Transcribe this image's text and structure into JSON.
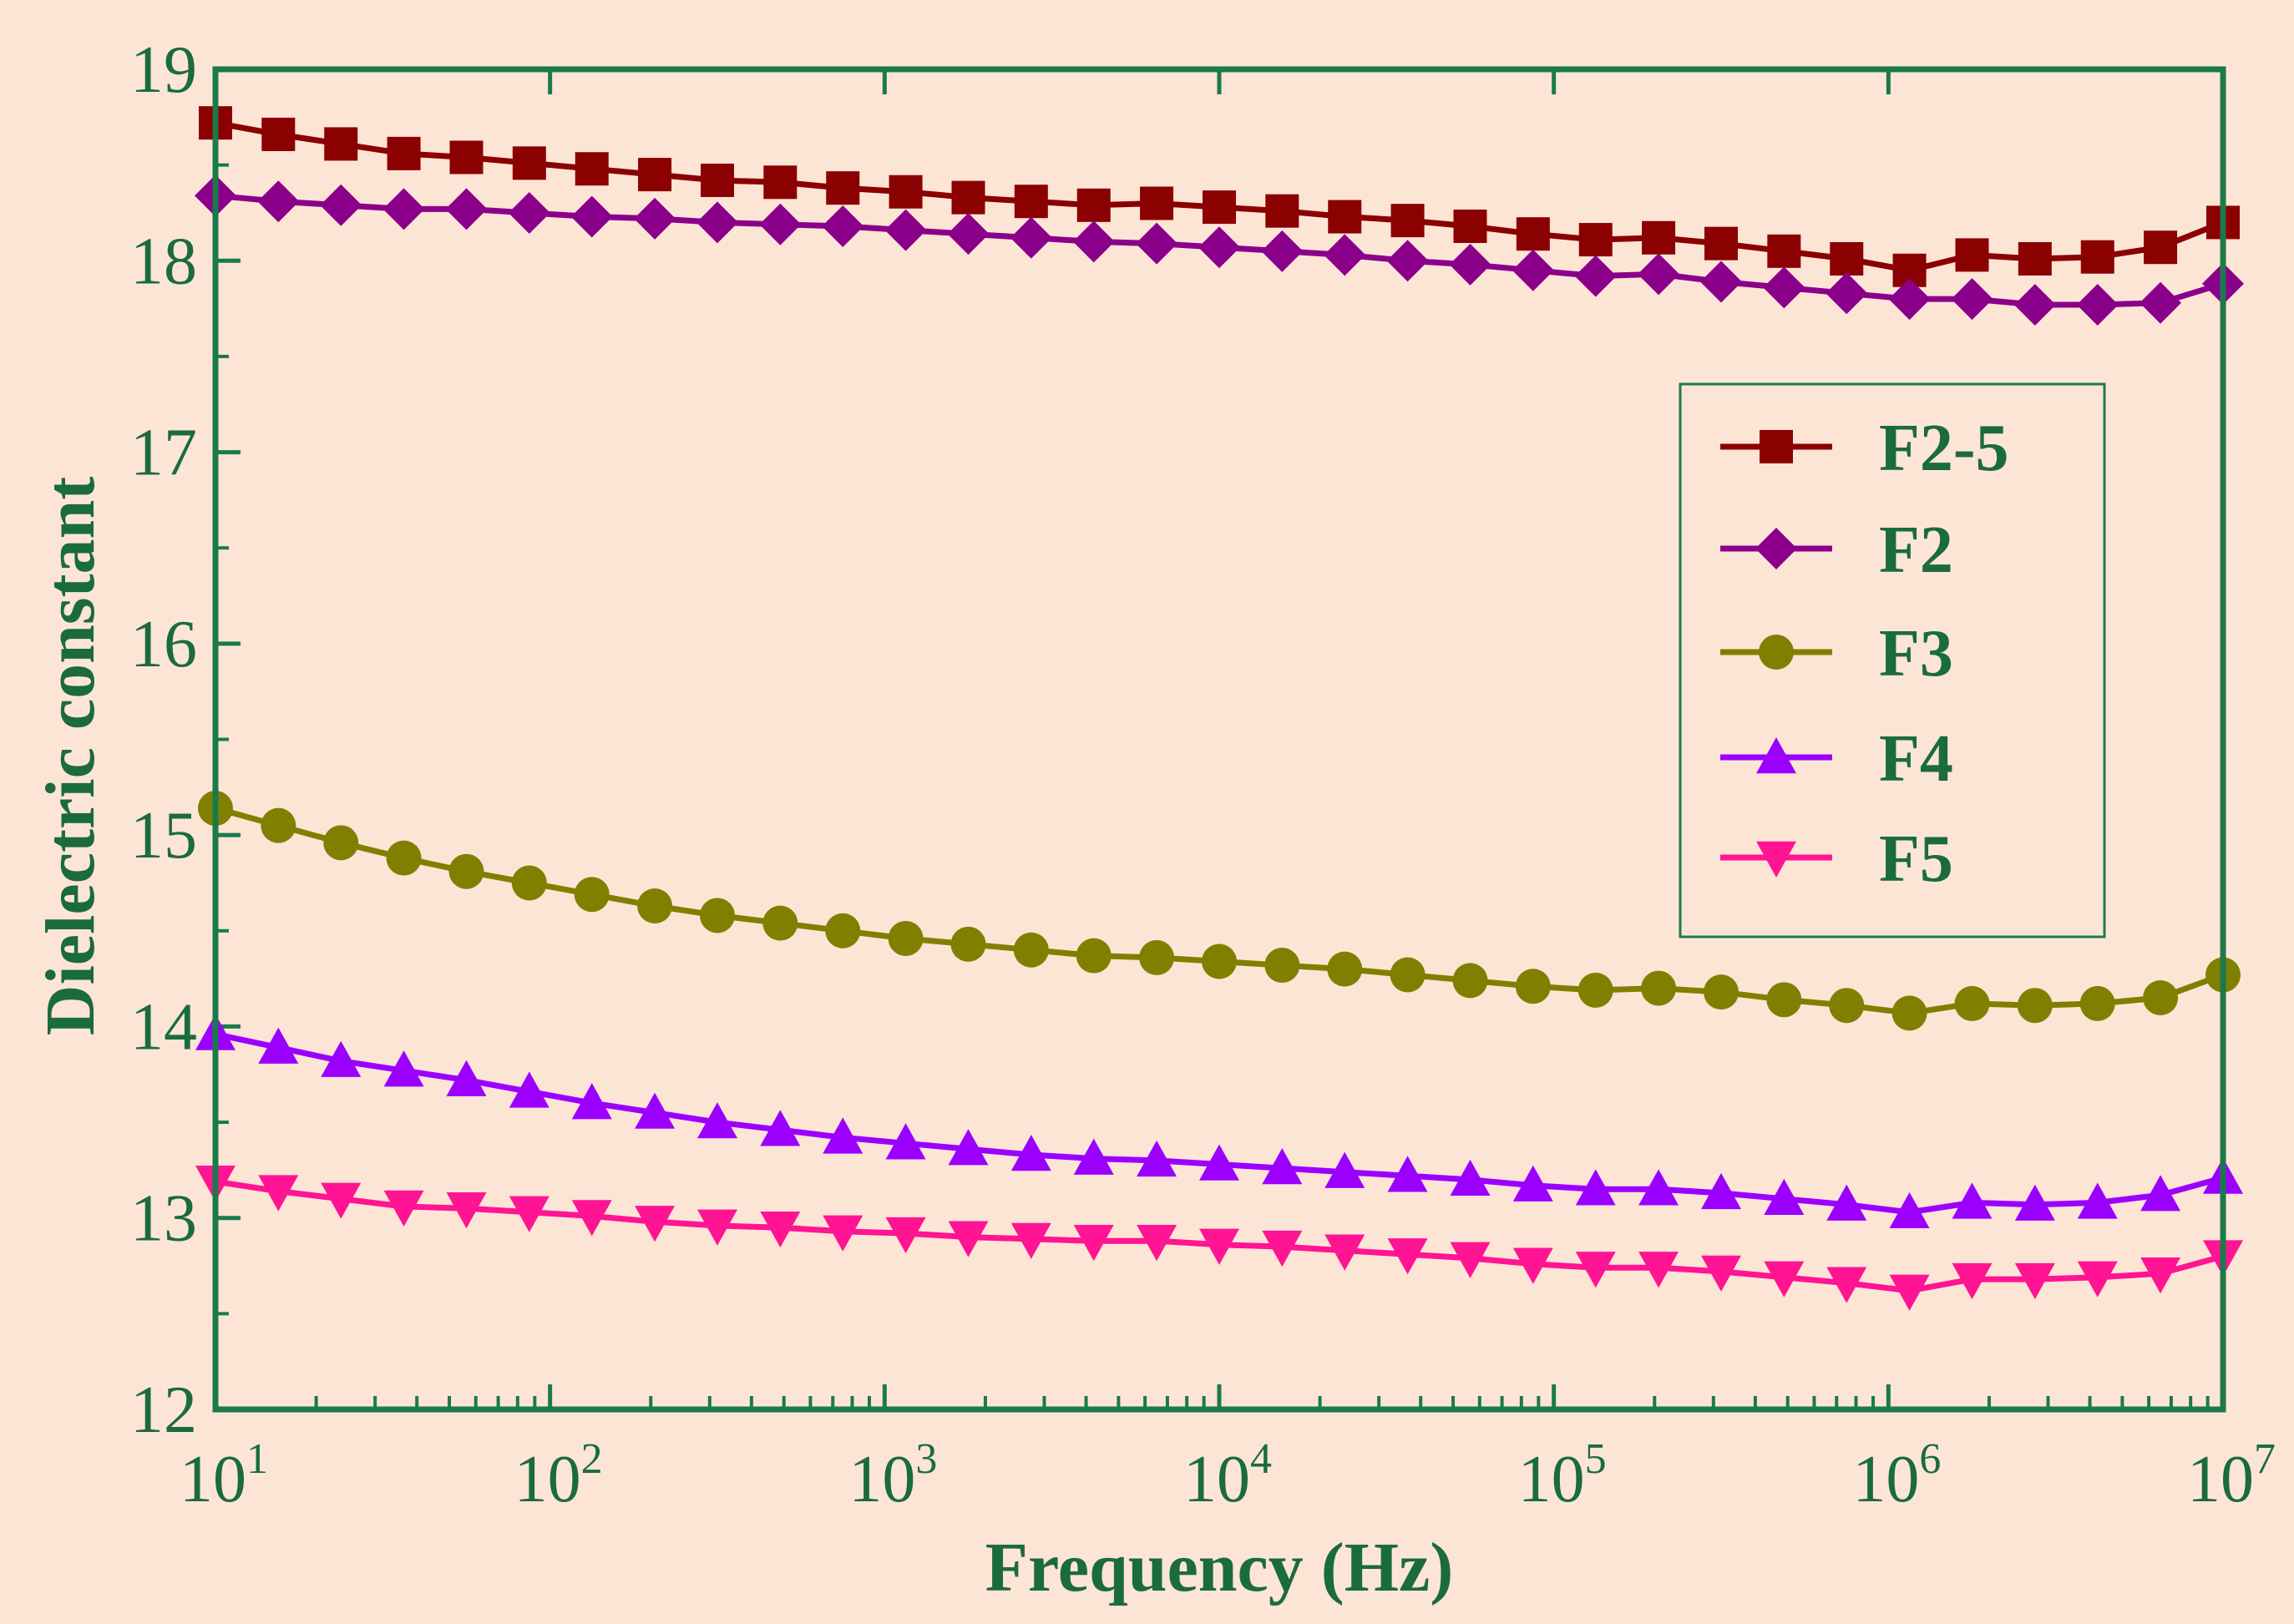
{
  "colors": {
    "background": "#fde5d6",
    "frame": "#1a7a4a",
    "text": "#1a6b3e"
  },
  "chart_data": {
    "type": "line",
    "title": "",
    "xlabel": "Frequency (Hz)",
    "ylabel": "Dielectric constant",
    "xscale": "log",
    "xlim": [
      10,
      10000000
    ],
    "ylim": [
      12,
      19
    ],
    "x_ticks": [
      {
        "base": "10",
        "exp": "1"
      },
      {
        "base": "10",
        "exp": "2"
      },
      {
        "base": "10",
        "exp": "3"
      },
      {
        "base": "10",
        "exp": "4"
      },
      {
        "base": "10",
        "exp": "5"
      },
      {
        "base": "10",
        "exp": "6"
      },
      {
        "base": "10",
        "exp": "7"
      }
    ],
    "y_ticks": [
      "12",
      "13",
      "14",
      "15",
      "16",
      "17",
      "18",
      "19"
    ],
    "legend_position": "right, upper-middle",
    "x_log10": [
      1.0,
      1.188,
      1.375,
      1.563,
      1.75,
      1.938,
      2.125,
      2.313,
      2.5,
      2.688,
      2.875,
      3.063,
      3.25,
      3.438,
      3.625,
      3.813,
      4.0,
      4.188,
      4.375,
      4.563,
      4.75,
      4.938,
      5.125,
      5.313,
      5.5,
      5.688,
      5.875,
      6.063,
      6.25,
      6.438,
      6.625,
      6.813,
      7.0
    ],
    "series": [
      {
        "name": "F2-5",
        "color": "#8b0000",
        "marker": "square",
        "values": [
          18.72,
          18.66,
          18.61,
          18.56,
          18.54,
          18.51,
          18.48,
          18.45,
          18.42,
          18.41,
          18.38,
          18.36,
          18.33,
          18.31,
          18.29,
          18.3,
          18.28,
          18.26,
          18.23,
          18.21,
          18.18,
          18.14,
          18.11,
          18.12,
          18.09,
          18.05,
          18.01,
          17.95,
          18.03,
          18.01,
          18.02,
          18.07,
          18.2
        ]
      },
      {
        "name": "F2",
        "color": "#8b008b",
        "marker": "diamond",
        "values": [
          18.34,
          18.31,
          18.29,
          18.27,
          18.27,
          18.25,
          18.23,
          18.22,
          18.2,
          18.19,
          18.18,
          18.16,
          18.14,
          18.12,
          18.1,
          18.09,
          18.07,
          18.05,
          18.03,
          18.0,
          17.98,
          17.95,
          17.92,
          17.93,
          17.89,
          17.86,
          17.83,
          17.8,
          17.8,
          17.77,
          17.77,
          17.78,
          17.88
        ]
      },
      {
        "name": "F3",
        "color": "#808000",
        "marker": "circle",
        "values": [
          15.14,
          15.05,
          14.96,
          14.88,
          14.81,
          14.75,
          14.69,
          14.63,
          14.58,
          14.54,
          14.5,
          14.46,
          14.43,
          14.4,
          14.37,
          14.36,
          14.34,
          14.32,
          14.3,
          14.27,
          14.24,
          14.21,
          14.19,
          14.2,
          14.18,
          14.14,
          14.11,
          14.07,
          14.12,
          14.11,
          14.12,
          14.15,
          14.27
        ]
      },
      {
        "name": "F4",
        "color": "#9b00ff",
        "marker": "triangle-up",
        "values": [
          13.96,
          13.89,
          13.82,
          13.77,
          13.72,
          13.66,
          13.6,
          13.55,
          13.5,
          13.46,
          13.42,
          13.39,
          13.36,
          13.33,
          13.31,
          13.3,
          13.28,
          13.26,
          13.24,
          13.22,
          13.2,
          13.17,
          13.15,
          13.15,
          13.13,
          13.1,
          13.07,
          13.03,
          13.08,
          13.07,
          13.08,
          13.12,
          13.21
        ]
      },
      {
        "name": "F5",
        "color": "#ff1493",
        "marker": "triangle-down",
        "values": [
          13.19,
          13.14,
          13.1,
          13.06,
          13.05,
          13.03,
          13.01,
          12.98,
          12.96,
          12.95,
          12.93,
          12.92,
          12.9,
          12.89,
          12.88,
          12.88,
          12.86,
          12.85,
          12.83,
          12.81,
          12.79,
          12.76,
          12.74,
          12.74,
          12.72,
          12.69,
          12.66,
          12.62,
          12.68,
          12.68,
          12.69,
          12.71,
          12.8
        ]
      }
    ]
  }
}
